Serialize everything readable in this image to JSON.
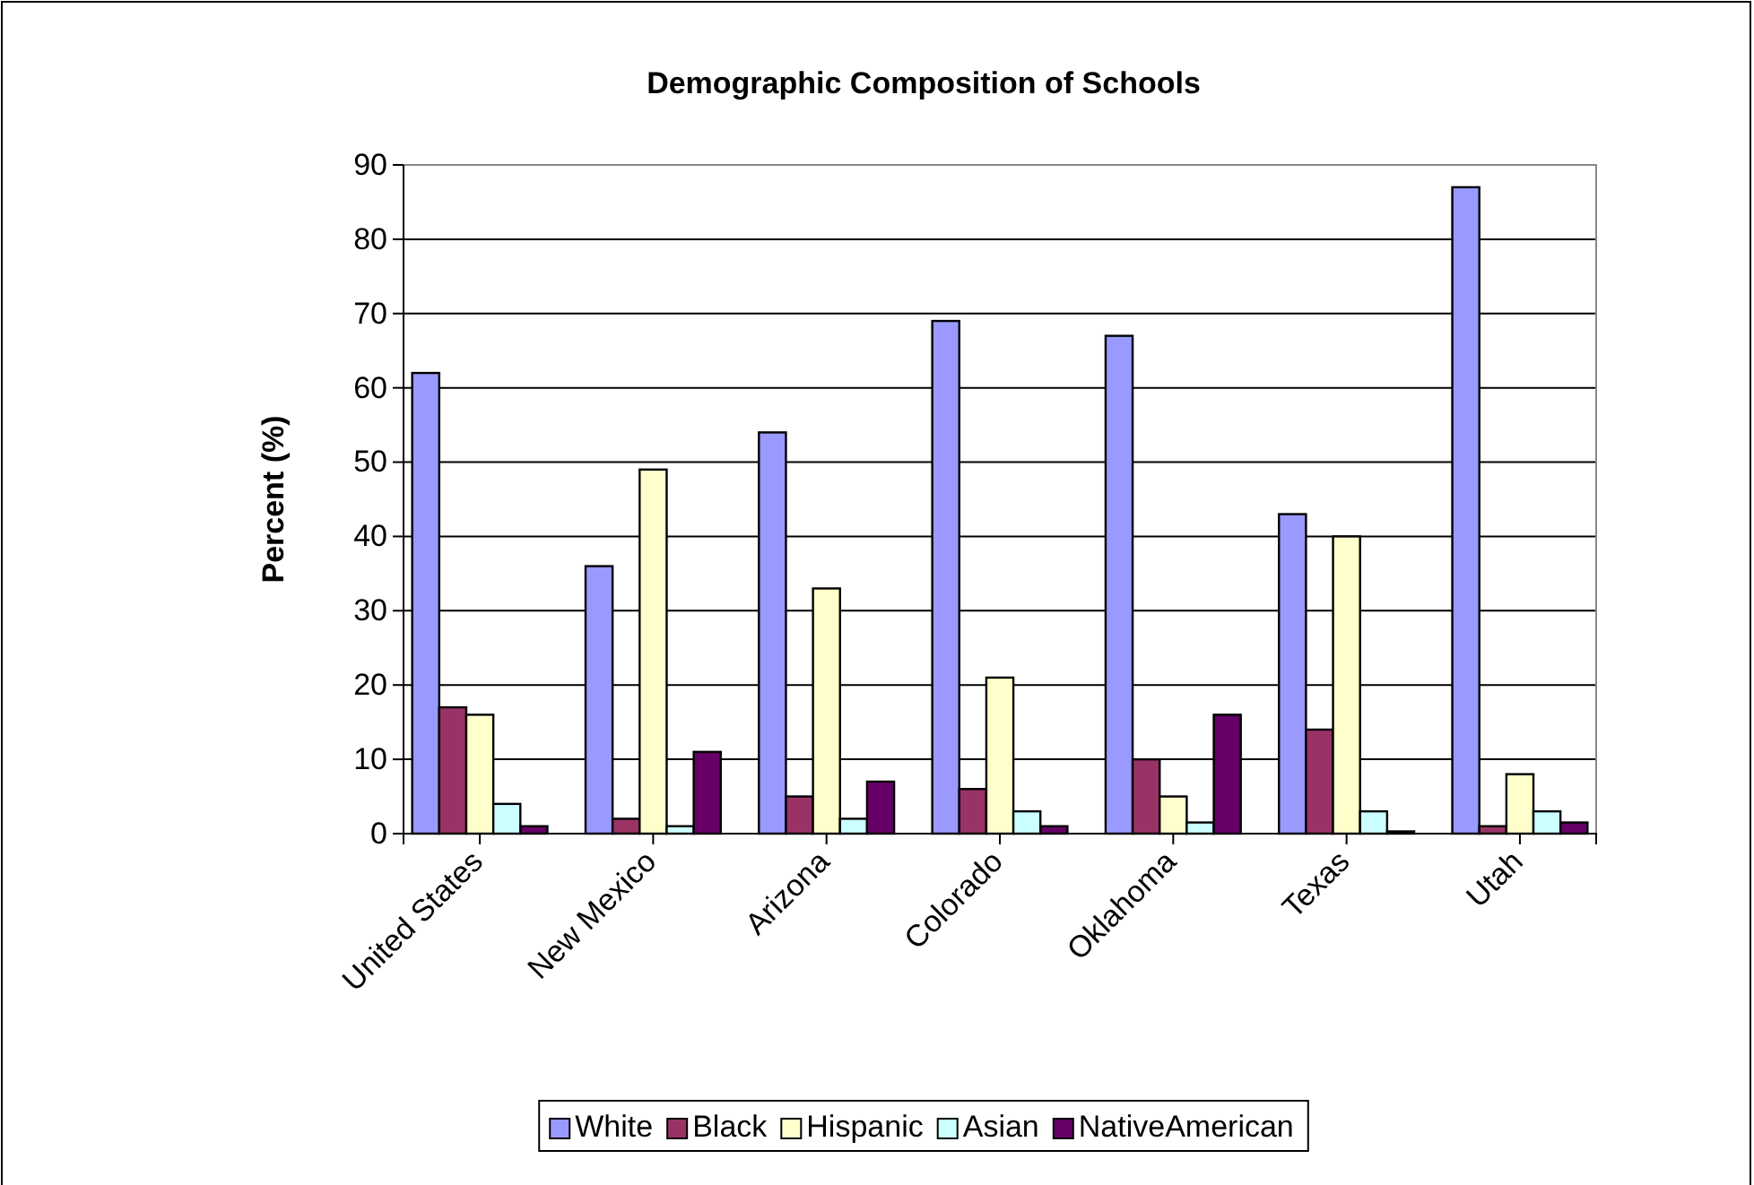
{
  "chart_data": {
    "type": "bar",
    "title": "Demographic Composition of Schools",
    "ylabel": "Percent (%)",
    "categories": [
      "United States",
      "New Mexico",
      "Arizona",
      "Colorado",
      "Oklahoma",
      "Texas",
      "Utah"
    ],
    "series": [
      {
        "name": "White",
        "color": "#9999ff",
        "values": [
          62,
          36,
          54,
          69,
          67,
          43,
          87
        ]
      },
      {
        "name": "Black",
        "color": "#993366",
        "values": [
          17,
          2,
          5,
          6,
          10,
          14,
          1
        ]
      },
      {
        "name": "Hispanic",
        "color": "#ffffcc",
        "values": [
          16,
          49,
          33,
          21,
          5,
          40,
          8
        ]
      },
      {
        "name": "Asian",
        "color": "#ccffff",
        "values": [
          4,
          1,
          2,
          3,
          1.5,
          3,
          3
        ]
      },
      {
        "name": "NativeAmerican",
        "color": "#660066",
        "values": [
          1,
          11,
          7,
          1,
          16,
          0.3,
          1.5
        ]
      }
    ],
    "ylim": [
      0,
      90
    ],
    "yticks": [
      0,
      10,
      20,
      30,
      40,
      50,
      60,
      70,
      80,
      90
    ],
    "grid": "y",
    "legend": "bottom"
  }
}
